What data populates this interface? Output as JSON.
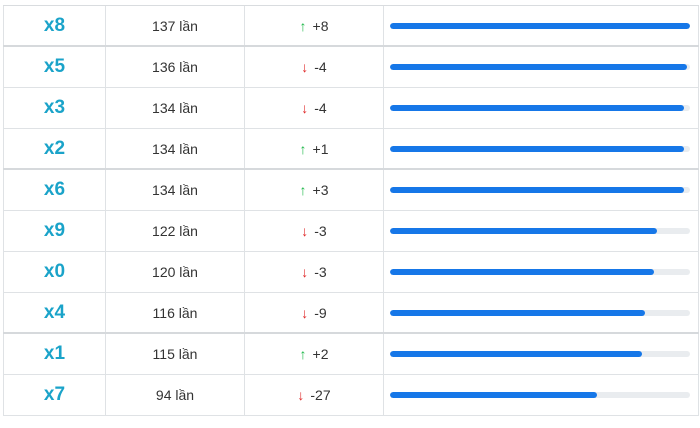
{
  "rows": [
    {
      "number": "x8",
      "count": "137 lần",
      "direction": "up",
      "change": "+8",
      "progress": 1.0
    },
    {
      "number": "x5",
      "count": "136 lần",
      "direction": "down",
      "change": "-4",
      "progress": 0.99
    },
    {
      "number": "x3",
      "count": "134 lần",
      "direction": "down",
      "change": "-4",
      "progress": 0.98
    },
    {
      "number": "x2",
      "count": "134 lần",
      "direction": "up",
      "change": "+1",
      "progress": 0.98
    },
    {
      "number": "x6",
      "count": "134 lần",
      "direction": "up",
      "change": "+3",
      "progress": 0.98
    },
    {
      "number": "x9",
      "count": "122 lần",
      "direction": "down",
      "change": "-3",
      "progress": 0.89
    },
    {
      "number": "x0",
      "count": "120 lần",
      "direction": "down",
      "change": "-3",
      "progress": 0.88
    },
    {
      "number": "x4",
      "count": "116 lần",
      "direction": "down",
      "change": "-9",
      "progress": 0.85
    },
    {
      "number": "x1",
      "count": "115 lần",
      "direction": "up",
      "change": "+2",
      "progress": 0.84
    },
    {
      "number": "x7",
      "count": "94 lần",
      "direction": "down",
      "change": "-27",
      "progress": 0.69
    }
  ],
  "icons": {
    "up": "arrow-up-icon",
    "down": "arrow-down-icon"
  },
  "colors": {
    "number": "#1aa3c9",
    "up": "#1fb84a",
    "down": "#e02b2b",
    "bar": "#1677e8",
    "track": "#e9ecef"
  }
}
